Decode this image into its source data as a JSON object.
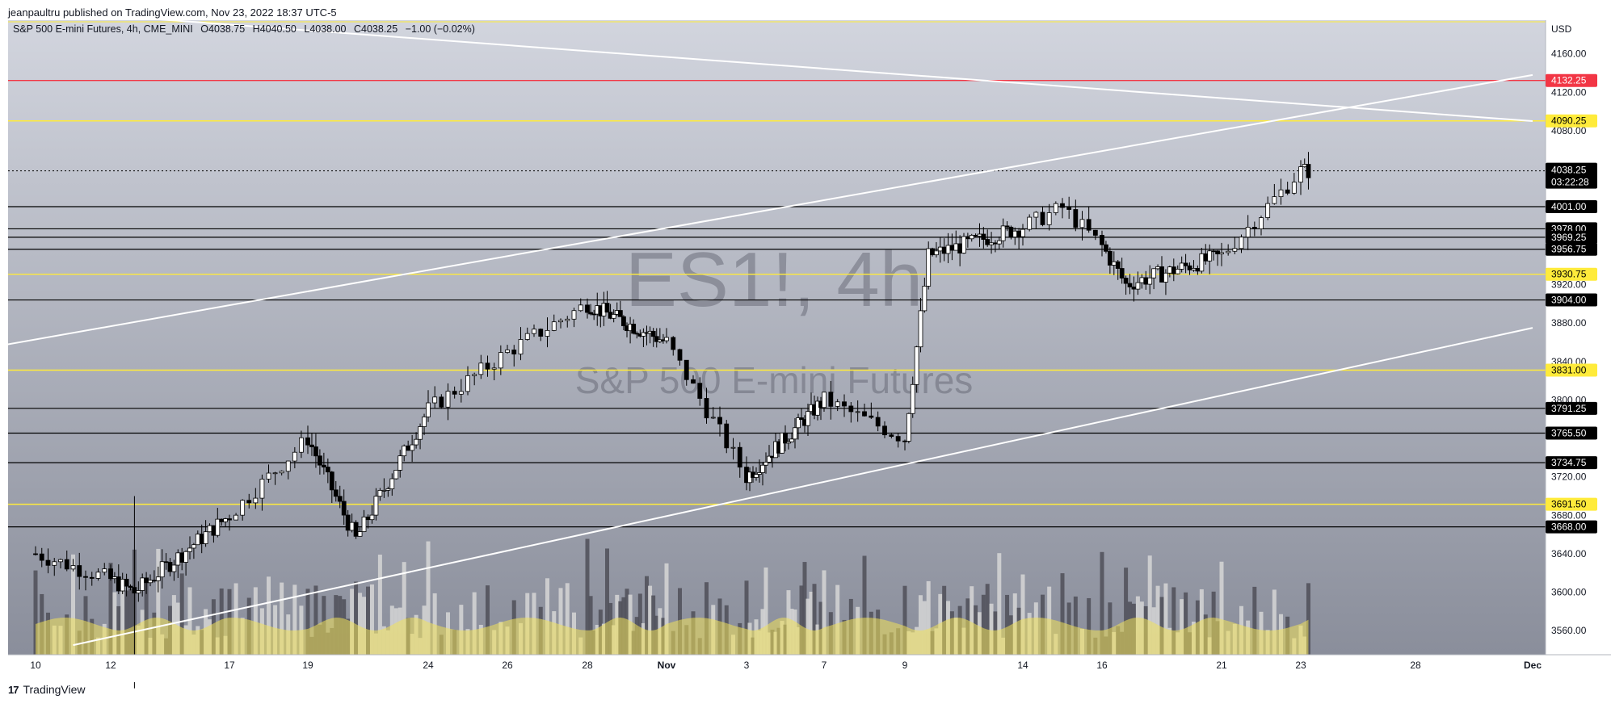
{
  "header": {
    "publisher_line": "jeanpaultru published on TradingView.com, Nov 23, 2022 18:37 UTC-5"
  },
  "legend": {
    "symbol_line": "S&P 500 E-mini Futures, 4h, CME_MINI",
    "open": "O4038.75",
    "high": "H4040.50",
    "low": "L4038.00",
    "close": "C4038.25",
    "change": "−1.00 (−0.02%)"
  },
  "watermark": {
    "ticker": "ES1!, 4h",
    "name": "S&P 500 E-mini Futures"
  },
  "footer": {
    "brand": "TradingView",
    "logo_glyph": "17"
  },
  "colors": {
    "bg_top": "#d0d3dc",
    "bg_bottom": "#8d919e",
    "yellow": "#ffeb3b",
    "red": "#f23645",
    "black": "#000000",
    "white": "#ffffff",
    "volume_light": "#d6d6d6",
    "volume_dark": "#4f4f58",
    "volume_ma": "#f2e25a"
  },
  "chart_data": {
    "type": "candlestick",
    "title": "S&P 500 E-mini Futures, 4h, CME_MINI",
    "currency": "USD",
    "y_range": [
      3535,
      4195
    ],
    "y_axis_ticks": [
      "4160.00",
      "4120.00",
      "4080.00",
      "3920.00",
      "3880.00",
      "3840.00",
      "3800.00",
      "3720.00",
      "3680.00",
      "3640.00",
      "3600.00",
      "3560.00"
    ],
    "x_axis_ticks": [
      "10",
      "12",
      "17",
      "19",
      "24",
      "26",
      "28",
      "Nov",
      "3",
      "7",
      "9",
      "14",
      "16",
      "21",
      "23",
      "28",
      "Dec"
    ],
    "horizontal_levels": [
      {
        "value": 4132.25,
        "label": "4132.25",
        "color": "red"
      },
      {
        "value": 4090.25,
        "label": "4090.25",
        "color": "yellow"
      },
      {
        "value": 4001.0,
        "label": "4001.00",
        "color": "black"
      },
      {
        "value": 3978.0,
        "label": "3978.00",
        "color": "black"
      },
      {
        "value": 3969.25,
        "label": "3969.25",
        "color": "black"
      },
      {
        "value": 3956.75,
        "label": "3956.75",
        "color": "black"
      },
      {
        "value": 3930.75,
        "label": "3930.75",
        "color": "yellow"
      },
      {
        "value": 3904.0,
        "label": "3904.00",
        "color": "black"
      },
      {
        "value": 3831.0,
        "label": "3831.00",
        "color": "yellow"
      },
      {
        "value": 3791.25,
        "label": "3791.25",
        "color": "black"
      },
      {
        "value": 3765.5,
        "label": "3765.50",
        "color": "black"
      },
      {
        "value": 3734.75,
        "label": "3734.75",
        "color": "black"
      },
      {
        "value": 3691.5,
        "label": "3691.50",
        "color": "yellow"
      },
      {
        "value": 3668.0,
        "label": "3668.00",
        "color": "black"
      }
    ],
    "last_price": {
      "value": 4038.25,
      "label": "4038.25",
      "countdown": "03:22:28"
    },
    "trend_lines": [
      {
        "from": [
          "Oct 5",
          4220
        ],
        "to": [
          "Dec 1",
          4090
        ]
      },
      {
        "from": [
          "Oct 5",
          3828
        ],
        "to": [
          "Dec 1",
          4138
        ]
      },
      {
        "from": [
          "Oct 11",
          3545
        ],
        "to": [
          "Dec 1",
          3875
        ]
      }
    ],
    "key_points": [
      {
        "date": "Oct 10",
        "close": 3640
      },
      {
        "date": "Oct 13",
        "low": 3500,
        "high": 3700
      },
      {
        "date": "Oct 17",
        "close": 3680
      },
      {
        "date": "Oct 19",
        "close": 3760
      },
      {
        "date": "Oct 21",
        "close": 3655
      },
      {
        "date": "Oct 24",
        "close": 3790
      },
      {
        "date": "Oct 26",
        "close": 3850
      },
      {
        "date": "Oct 28",
        "close": 3900
      },
      {
        "date": "Nov 1",
        "close": 3860
      },
      {
        "date": "Nov 3",
        "close": 3720
      },
      {
        "date": "Nov 7",
        "close": 3800
      },
      {
        "date": "Nov 9",
        "close": 3760
      },
      {
        "date": "Nov 10",
        "close": 3950
      },
      {
        "date": "Nov 14",
        "close": 3980
      },
      {
        "date": "Nov 15",
        "high": 4050,
        "close": 4000
      },
      {
        "date": "Nov 17",
        "close": 3920
      },
      {
        "date": "Nov 21",
        "close": 3950
      },
      {
        "date": "Nov 23",
        "close": 4038.25
      }
    ]
  }
}
